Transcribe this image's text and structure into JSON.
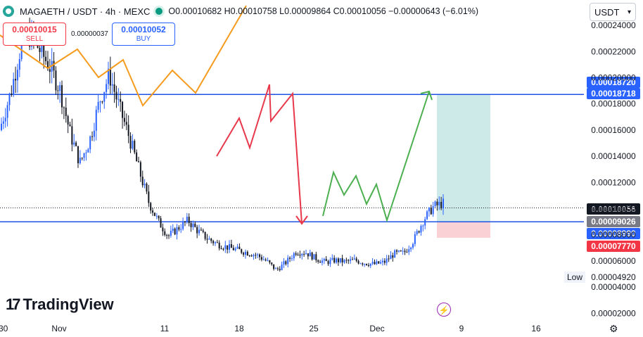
{
  "header": {
    "symbol": "MAGAETH / USDT · 4h · MEXC",
    "ohlc": "O0.00010682 H0.00010758 L0.00009864 C0.00010056 −0.00000643 (−6.01%)"
  },
  "trade": {
    "sell_price": "0.00010015",
    "sell_label": "SELL",
    "spread": "0.00000037",
    "buy_price": "0.00010052",
    "buy_label": "BUY"
  },
  "currency": "USDT",
  "branding": "TradingView",
  "low_label": "Low",
  "colors": {
    "candle_up": "#2962ff",
    "candle_down": "#131722",
    "horizontal_line": "#1e53e5",
    "orange_path": "#f59b1e",
    "red_path": "#e8394c",
    "green_path": "#4caf50",
    "target_zone": "#b2dfdb",
    "stop_zone": "#f8c2c6"
  },
  "chart_data": {
    "type": "candlestick",
    "title": "MAGAETH / USDT · 4h · MEXC",
    "x_ticks": [
      ":30",
      "Nov",
      "11",
      "18",
      "25",
      "Dec",
      "9",
      "16"
    ],
    "y_ticks": [
      "0.00002000",
      "0.00004000",
      "0.00006000",
      "0.00008000",
      "0.00010000",
      "0.00012000",
      "0.00014000",
      "0.00016000",
      "0.00018000",
      "0.00020000",
      "0.00022000",
      "0.00024000"
    ],
    "ylim": [
      1e-05,
      0.00025
    ],
    "y_tick_values": [
      2e-05,
      4e-05,
      6e-05,
      8e-05,
      0.0001,
      0.00012,
      0.00014,
      0.00016,
      0.00018,
      0.0002,
      0.00022,
      0.00024
    ],
    "price_levels": [
      {
        "label": "0.00018720",
        "value": 0.0001872,
        "color": "#2962ff"
      },
      {
        "label": "0.00018718",
        "value": 0.00018718,
        "color": "#2962ff"
      },
      {
        "label": "0.00010056",
        "value": 0.00010056,
        "color": "#131722"
      },
      {
        "label": "0.00009026",
        "value": 9.026e-05,
        "color": "#787b86"
      },
      {
        "label": "0.00008990",
        "value": 8.99e-05,
        "color": "#2962ff"
      },
      {
        "label": "0.00007770",
        "value": 7.77e-05,
        "color": "#f23645"
      }
    ],
    "low_value": "0.00004920",
    "horizontal_lines": [
      0.0001872,
      8.99e-05
    ],
    "current_price": 0.00010056,
    "long_position": {
      "entry": 9.026e-05,
      "target": 0.00018718,
      "stop": 7.77e-05
    },
    "price_path": [
      [
        0.00016,
        0.00017
      ],
      [
        0.00018,
        0.0002
      ],
      [
        0.000215,
        0.000235
      ],
      [
        0.000225,
        0.00024
      ],
      [
        0.000225,
        0.000215
      ],
      [
        0.00021,
        0.000205
      ],
      [
        0.0002,
        0.00018
      ],
      [
        0.000165,
        0.00015
      ],
      [
        0.00014,
        0.00013
      ],
      [
        0.000145,
        0.00016
      ],
      [
        0.000175,
        0.00019
      ],
      [
        0.000205,
        0.0002
      ],
      [
        0.000185,
        0.00017
      ],
      [
        0.00016,
        0.00015
      ],
      [
        0.00014,
        0.00012
      ],
      [
        0.00011,
        0.0001
      ],
      [
        9.5e-05,
        8.5e-05
      ],
      [
        8e-05,
        7.8e-05
      ],
      [
        8.2e-05,
        8.8e-05
      ],
      [
        9.2e-05,
        9e-05
      ],
      [
        8.6e-05,
        8e-05
      ],
      [
        7.8e-05,
        7.6e-05
      ],
      [
        7.4e-05,
        7.2e-05
      ],
      [
        7.1e-05,
        7e-05
      ],
      [
        6.9e-05,
        6.8e-05
      ],
      [
        6.7e-05,
        6.6e-05
      ],
      [
        6.5e-05,
        6.4e-05
      ],
      [
        6.2e-05,
        5.8e-05
      ],
      [
        5.4e-05,
        5.2e-05
      ],
      [
        5.6e-05,
        6.2e-05
      ],
      [
        6.6e-05,
        6.8e-05
      ],
      [
        6.7e-05,
        6.6e-05
      ],
      [
        6.4e-05,
        6e-05
      ],
      [
        5.8e-05,
        6e-05
      ],
      [
        6.1e-05,
        6e-05
      ],
      [
        5.9e-05,
        6e-05
      ],
      [
        6.1e-05,
        6e-05
      ],
      [
        5.9e-05,
        5.8e-05
      ],
      [
        5.8e-05,
        5.7e-05
      ],
      [
        5.8e-05,
        6e-05
      ],
      [
        6.5e-05,
        6.6e-05
      ],
      [
        6.4e-05,
        6.8e-05
      ],
      [
        7.2e-05,
        8e-05
      ],
      [
        8.8e-05,
        9.5e-05
      ],
      [
        9.8e-05,
        0.000105
      ],
      [
        0.000107,
        0.000101
      ]
    ]
  }
}
